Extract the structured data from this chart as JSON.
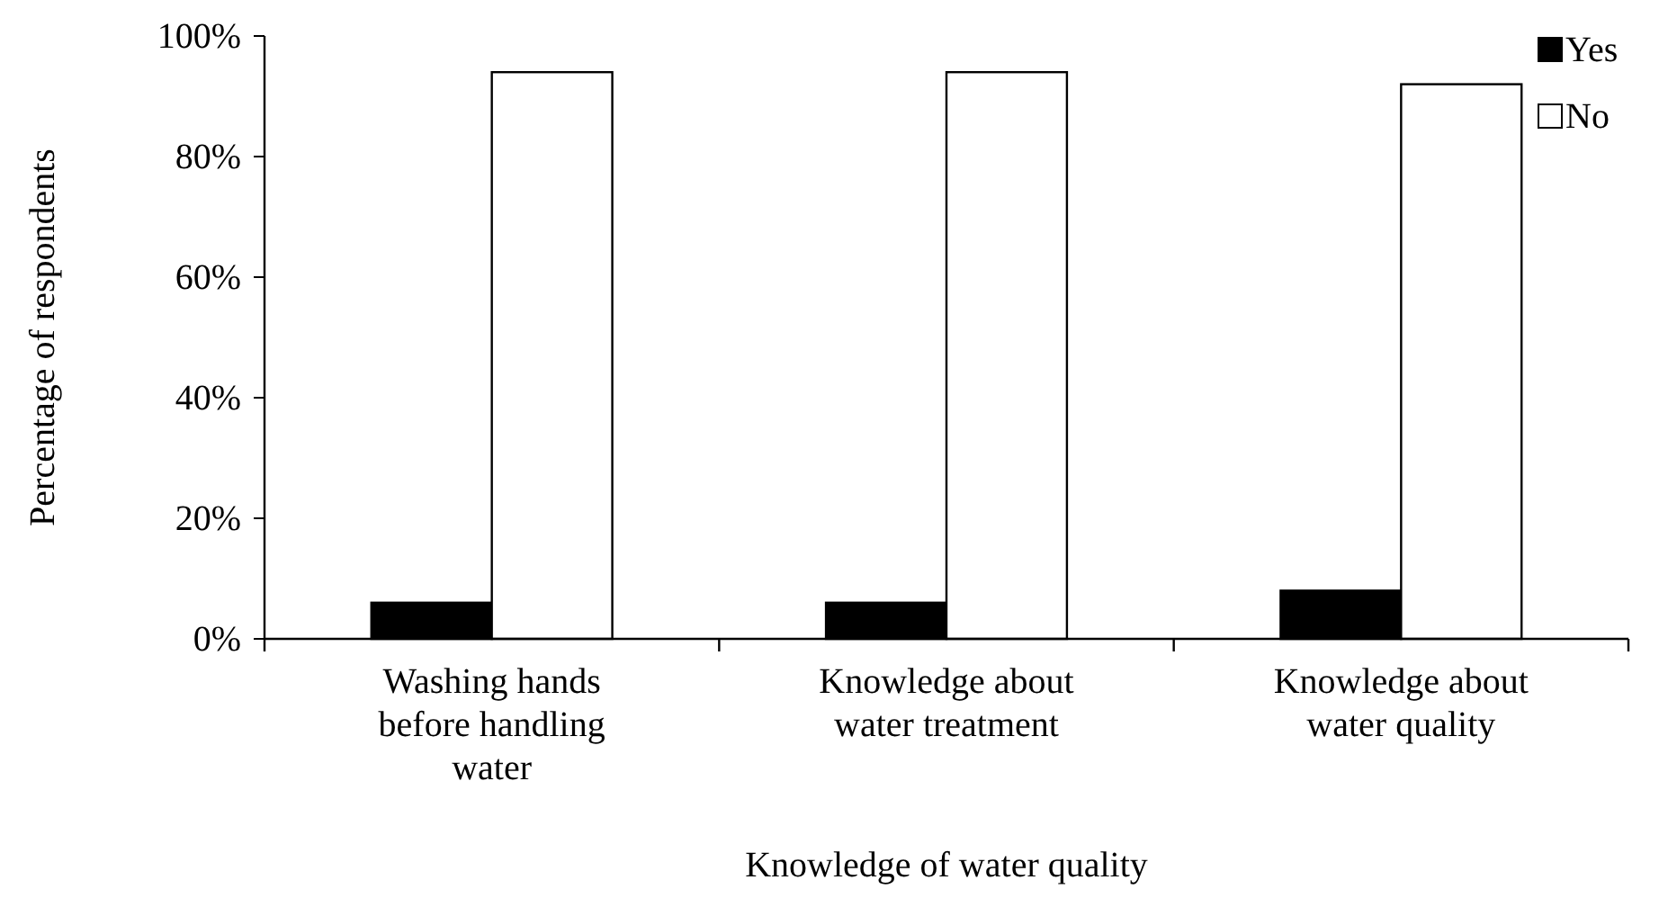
{
  "chart_data": {
    "type": "bar",
    "xlabel": "Knowledge of water quality",
    "ylabel": "Percentage of respondents",
    "categories": [
      "Washing hands before handling water",
      "Knowledge about water treatment",
      "Knowledge about water quality"
    ],
    "series": [
      {
        "name": "Yes",
        "color": "#000000",
        "values": [
          6,
          6,
          8
        ]
      },
      {
        "name": "No",
        "color": "#ffffff",
        "values": [
          94,
          94,
          92
        ]
      }
    ],
    "ylim": [
      0,
      100
    ],
    "yticks": [
      {
        "value": 0,
        "label": "0%"
      },
      {
        "value": 20,
        "label": "20%"
      },
      {
        "value": 40,
        "label": "40%"
      },
      {
        "value": 60,
        "label": "60%"
      },
      {
        "value": 80,
        "label": "80%"
      },
      {
        "value": 100,
        "label": "100%"
      }
    ],
    "grid": false,
    "legend": "right"
  }
}
